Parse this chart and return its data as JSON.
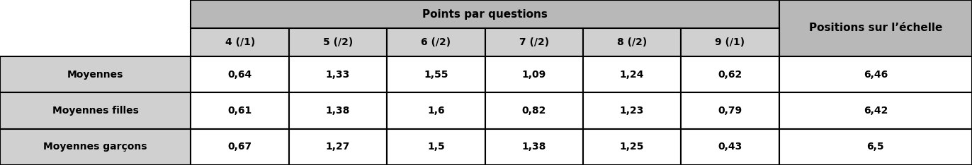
{
  "header_group": "Points par questions",
  "col_headers": [
    "4 (/1)",
    "5 (/2)",
    "6 (/2)",
    "7 (/2)",
    "8 (/2)",
    "9 (/1)"
  ],
  "last_header": "Positions sur l’échelle",
  "row_labels": [
    "Moyennes",
    "Moyennes filles",
    "Moyennes garçons"
  ],
  "data": [
    [
      "0,64",
      "1,33",
      "1,55",
      "1,09",
      "1,24",
      "0,62",
      "6,46"
    ],
    [
      "0,61",
      "1,38",
      "1,6",
      "0,82",
      "1,23",
      "0,79",
      "6,42"
    ],
    [
      "0,67",
      "1,27",
      "1,5",
      "1,38",
      "1,25",
      "0,43",
      "6,5"
    ]
  ],
  "bg_header": "#b8b8b8",
  "bg_subheader": "#d0d0d0",
  "bg_row_label": "#d0d0d0",
  "bg_white": "#ffffff",
  "border_color": "#000000",
  "text_color": "#000000",
  "fig_width": 13.72,
  "fig_height": 2.34,
  "dpi": 100
}
